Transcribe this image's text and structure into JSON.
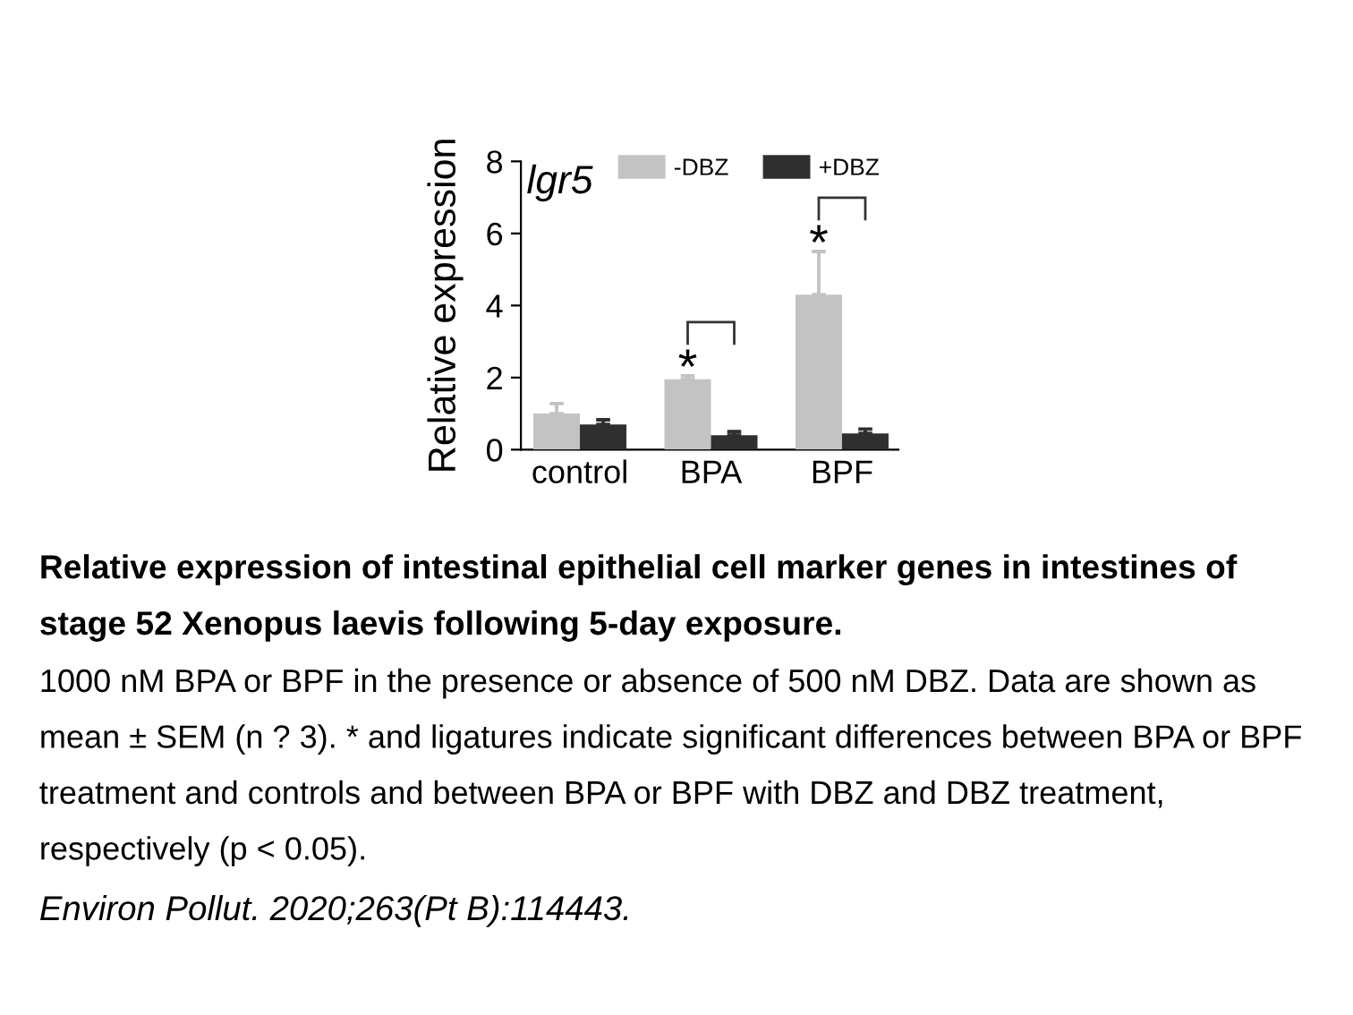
{
  "chart_data": {
    "type": "bar",
    "title": "Relative expression of intestinal epithelial cell marker genes in intestines of stage 52 Xenopus laevis following 5-day exposure.",
    "ylabel": "Relative expression",
    "categories": [
      "control",
      "BPA",
      "BPF"
    ],
    "series": [
      {
        "name": "-DBZ",
        "color": "#c3c3c3",
        "values": [
          1.0,
          1.95,
          4.3
        ],
        "errors": [
          [
            1.0,
            1.28
          ],
          [
            1.95,
            2.05
          ],
          [
            4.3,
            5.5
          ]
        ]
      },
      {
        "name": "+DBZ",
        "color": "#2f2f2f",
        "values": [
          0.7,
          0.4,
          0.45
        ],
        "errors": [
          [
            0.7,
            0.83
          ],
          [
            0.4,
            0.5
          ],
          [
            0.45,
            0.57
          ]
        ]
      }
    ],
    "ylim": [
      0,
      8
    ],
    "yticks": [
      0,
      2,
      4,
      6,
      8
    ],
    "legend": "top right",
    "annotations": [
      "lgr5",
      {
        "text": "*",
        "x": "BPA",
        "y": 1.95
      },
      {
        "text": "*",
        "x": "BPF",
        "y": 4.3
      },
      "1000 nM BPA or BPF in the presence or absence of 500 nM DBZ. Data are shown as mean ± SEM (n ? 3). * and ligatures indicate significant differences between BPA or BPF treatment and controls and between BPA or BPF with DBZ and DBZ treatment, respectively (p < 0.05).",
      "Environ Pollut. 2020;263(Pt B):114443."
    ]
  }
}
